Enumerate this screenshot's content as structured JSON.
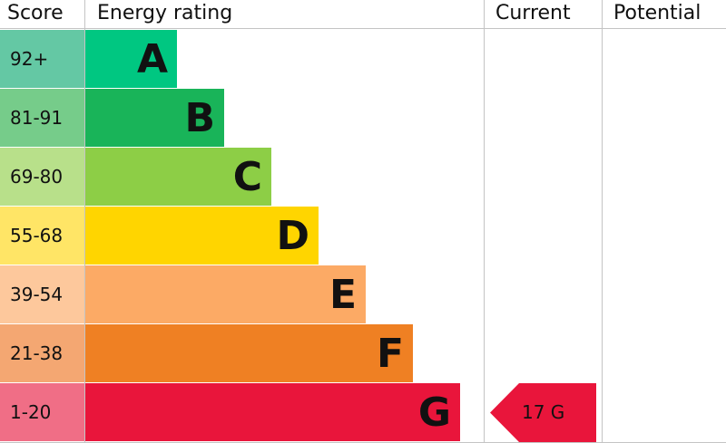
{
  "chart_data": {
    "type": "table",
    "headers": {
      "score": "Score",
      "rating": "Energy rating",
      "current": "Current",
      "potential": "Potential"
    },
    "bands": [
      {
        "score": "92+",
        "letter": "A",
        "color": "#00c781",
        "score_color": "#64c8a4"
      },
      {
        "score": "81-91",
        "letter": "B",
        "color": "#19b459",
        "score_color": "#76cc8a"
      },
      {
        "score": "69-80",
        "letter": "C",
        "color": "#8dce46",
        "score_color": "#b8e08a"
      },
      {
        "score": "55-68",
        "letter": "D",
        "color": "#ffd500",
        "score_color": "#ffe566"
      },
      {
        "score": "39-54",
        "letter": "E",
        "color": "#fcaa65",
        "score_color": "#fdc89c"
      },
      {
        "score": "21-38",
        "letter": "F",
        "color": "#ef8023",
        "score_color": "#f4a772"
      },
      {
        "score": "1-20",
        "letter": "G",
        "color": "#e9153b",
        "score_color": "#f06e86"
      }
    ],
    "current": {
      "value": 17,
      "letter": "G",
      "label": "17  G",
      "color": "#e9153b"
    },
    "potential": null
  }
}
